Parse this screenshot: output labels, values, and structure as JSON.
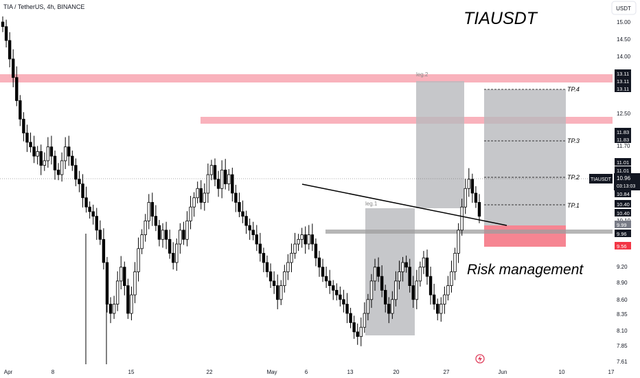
{
  "header": {
    "symbol_info": "TIA / TetherUS, 4h, BINANCE",
    "currency": "USDT"
  },
  "annotations": {
    "title": "TIAUSDT",
    "risk_management": "Risk management",
    "leg1": "leg.1",
    "leg2": "leg.2"
  },
  "chart_data": {
    "type": "candlestick",
    "title": "TIAUSDT",
    "symbol": "TIA / TetherUS",
    "interval": "4h",
    "exchange": "BINANCE",
    "currency": "USDT",
    "y_axis_ticks": [
      15.0,
      14.5,
      14.0,
      12.5,
      11.7,
      10.1,
      9.2,
      8.9,
      8.6,
      8.35,
      8.1,
      7.85,
      7.61
    ],
    "x_axis_ticks": [
      "Apr",
      "8",
      "15",
      "22",
      "May",
      "6",
      "13",
      "20",
      "27",
      "Jun",
      "10",
      "17"
    ],
    "ylim": [
      7.6,
      15.2
    ],
    "close_series": [
      14.9,
      14.6,
      14.2,
      13.8,
      13.3,
      12.9,
      12.6,
      12.4,
      12.3,
      12.1,
      12.2,
      11.9,
      12.0,
      12.3,
      12.1,
      11.8,
      11.7,
      12.0,
      12.3,
      12.1,
      11.9,
      11.6,
      11.5,
      11.2,
      11.0,
      10.9,
      10.8,
      10.5,
      10.3,
      9.8,
      8.9,
      8.7,
      8.9,
      9.4,
      9.7,
      9.3,
      8.7,
      9.1,
      9.6,
      10.1,
      10.4,
      10.7,
      11.1,
      10.8,
      10.6,
      10.3,
      10.5,
      10.3,
      10.0,
      9.8,
      10.2,
      10.5,
      10.3,
      10.7,
      11.0,
      11.2,
      11.4,
      11.1,
      11.3,
      11.7,
      11.9,
      11.6,
      11.4,
      11.8,
      11.5,
      11.7,
      11.3,
      11.1,
      10.9,
      10.8,
      10.6,
      10.5,
      10.4,
      10.2,
      10.0,
      9.8,
      9.6,
      9.4,
      9.3,
      9.0,
      9.3,
      9.6,
      9.8,
      10.0,
      10.2,
      10.3,
      10.4,
      10.2,
      10.4,
      10.2,
      9.9,
      9.7,
      9.5,
      9.4,
      9.3,
      9.2,
      9.1,
      9.0,
      8.9,
      8.7,
      8.5,
      8.3,
      8.2,
      8.4,
      8.7,
      9.0,
      9.4,
      9.7,
      9.5,
      9.2,
      8.9,
      8.7,
      9.0,
      9.4,
      9.6,
      9.8,
      9.7,
      9.3,
      9.0,
      9.4,
      9.7,
      9.9,
      9.5,
      9.1,
      8.9,
      8.7,
      8.9,
      9.1,
      9.3,
      9.6,
      10.0,
      10.5,
      11.0,
      11.4,
      11.6,
      11.3,
      11.1,
      10.8
    ],
    "current_price": "10.96",
    "countdown": "03:13:03",
    "levels": {
      "tp4": {
        "label": "TP.4",
        "price": 13.11
      },
      "tp3": {
        "label": "TP.3",
        "price": 11.83
      },
      "tp2": {
        "label": "TP.2",
        "price": 11.01
      },
      "tp1": {
        "label": "TP.1",
        "price": 10.4
      },
      "entry": {
        "price": 9.96
      },
      "stop": {
        "price": 9.56
      }
    },
    "resistance_zones": [
      13.11,
      11.83
    ],
    "support_level": 9.99,
    "price_labels": [
      {
        "text": "13.11",
        "style": "dark"
      },
      {
        "text": "13.11",
        "style": "dark"
      },
      {
        "text": "13.11",
        "style": "dark"
      },
      {
        "text": "11.83",
        "style": "dark"
      },
      {
        "text": "11.83",
        "style": "dark"
      },
      {
        "text": "11.01",
        "style": "dark"
      },
      {
        "text": "11.01",
        "style": "dark"
      },
      {
        "text": "10.84",
        "style": "dark"
      },
      {
        "text": "10.40",
        "style": "dark"
      },
      {
        "text": "10.40",
        "style": "dark"
      },
      {
        "text": "9.99",
        "style": "gray"
      },
      {
        "text": "9.96",
        "style": "dark"
      },
      {
        "text": "9.56",
        "style": "red"
      }
    ],
    "colors": {
      "candle": "#000000",
      "resistance": "#f8a5b0",
      "risk_zone": "#f5707f",
      "target_box": "#b8b9bd",
      "support_line": "#9e9e9e"
    }
  }
}
